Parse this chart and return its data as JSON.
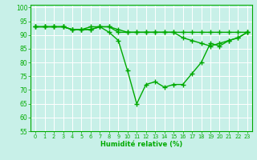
{
  "xlabel": "Humidité relative (%)",
  "background_color": "#c8f0e8",
  "grid_color": "#ffffff",
  "line_color": "#00aa00",
  "xlim": [
    -0.5,
    23.5
  ],
  "ylim": [
    55,
    101
  ],
  "xticks": [
    0,
    1,
    2,
    3,
    4,
    5,
    6,
    7,
    8,
    9,
    10,
    11,
    12,
    13,
    14,
    15,
    16,
    17,
    18,
    19,
    20,
    21,
    22,
    23
  ],
  "yticks": [
    55,
    60,
    65,
    70,
    75,
    80,
    85,
    90,
    95,
    100
  ],
  "line1_x": [
    0,
    1,
    2,
    3,
    4,
    5,
    6,
    7,
    8,
    9,
    10,
    11,
    12,
    13,
    14,
    15,
    16,
    17,
    18,
    19,
    20,
    21,
    22,
    23
  ],
  "line1_y": [
    93,
    93,
    93,
    93,
    92,
    92,
    93,
    93,
    93,
    92,
    91,
    91,
    91,
    91,
    91,
    91,
    91,
    91,
    91,
    91,
    91,
    91,
    91,
    91
  ],
  "line2_x": [
    0,
    1,
    2,
    3,
    4,
    5,
    6,
    7,
    8,
    9,
    10,
    11,
    12,
    13,
    14,
    15,
    16,
    17,
    18,
    19,
    20,
    21,
    22,
    23
  ],
  "line2_y": [
    93,
    93,
    93,
    93,
    92,
    92,
    92,
    93,
    93,
    91,
    91,
    91,
    91,
    91,
    91,
    91,
    89,
    88,
    87,
    86,
    87,
    88,
    89,
    91
  ],
  "line3_x": [
    0,
    1,
    2,
    3,
    4,
    5,
    6,
    7,
    8,
    9,
    10,
    11,
    12,
    13,
    14,
    15,
    16,
    17,
    18,
    19,
    20,
    21,
    22,
    23
  ],
  "line3_y": [
    93,
    93,
    93,
    93,
    92,
    92,
    92,
    93,
    91,
    88,
    77,
    65,
    72,
    73,
    71,
    72,
    72,
    76,
    80,
    87,
    86,
    88,
    89,
    91
  ],
  "marker": "+",
  "markersize": 4,
  "linewidth": 1.0
}
